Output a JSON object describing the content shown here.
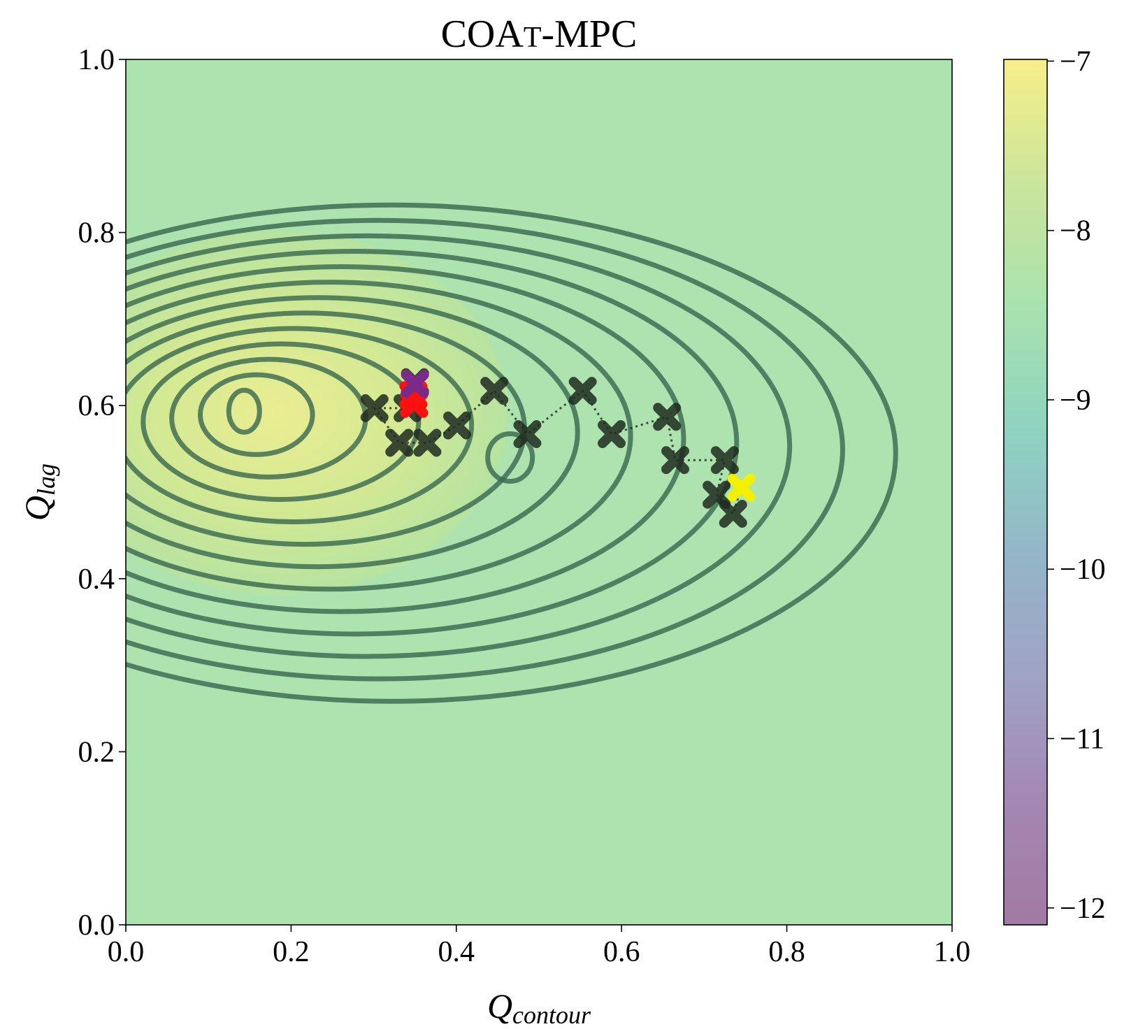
{
  "chart_data": {
    "type": "contour",
    "title": "COAT-MPC",
    "title_parts": {
      "prefix": "COA",
      "smallcaps": "T",
      "suffix": "-MPC"
    },
    "xlabel": {
      "main": "Q",
      "sub": "contour"
    },
    "ylabel": {
      "main": "Q",
      "sub": "lag"
    },
    "xlim": [
      0.0,
      1.0
    ],
    "ylim": [
      0.0,
      1.0
    ],
    "xticks": [
      "0.0",
      "0.2",
      "0.4",
      "0.6",
      "0.8",
      "1.0"
    ],
    "yticks": [
      "0.0",
      "0.2",
      "0.4",
      "0.6",
      "0.8",
      "1.0"
    ],
    "colorbar": {
      "range": [
        -12.1,
        -6.99
      ],
      "ticks": [
        "−7",
        "−8",
        "−9",
        "−10",
        "−11",
        "−12"
      ],
      "tick_values": [
        -7,
        -8,
        -9,
        -10,
        -11,
        -12
      ],
      "colors": [
        "#f7ef8a",
        "#cbe59b",
        "#a9e2af",
        "#8dd3c0",
        "#94b6c8",
        "#9fa3c4",
        "#a487b2",
        "#a27aa3"
      ]
    },
    "background_color": "#ade3af",
    "contour_color": "#3c6a51",
    "main_peak": {
      "x": 0.15,
      "y": 0.6
    },
    "secondary_peak": {
      "x": 0.46,
      "y": 0.54
    },
    "trajectory": [
      {
        "x": 0.745,
        "y": 0.505,
        "color": "#f3f000"
      },
      {
        "x": 0.735,
        "y": 0.475,
        "color": "#1e2a1e"
      },
      {
        "x": 0.715,
        "y": 0.497,
        "color": "#1e2a1e"
      },
      {
        "x": 0.725,
        "y": 0.537,
        "color": "#1e2a1e"
      },
      {
        "x": 0.665,
        "y": 0.537,
        "color": "#1e2a1e"
      },
      {
        "x": 0.655,
        "y": 0.587,
        "color": "#1e2a1e"
      },
      {
        "x": 0.588,
        "y": 0.567,
        "color": "#1e2a1e"
      },
      {
        "x": 0.553,
        "y": 0.617,
        "color": "#1e2a1e"
      },
      {
        "x": 0.486,
        "y": 0.567,
        "color": "#1e2a1e"
      },
      {
        "x": 0.446,
        "y": 0.617,
        "color": "#1e2a1e"
      },
      {
        "x": 0.401,
        "y": 0.577,
        "color": "#1e2a1e"
      },
      {
        "x": 0.365,
        "y": 0.557,
        "color": "#1e2a1e"
      },
      {
        "x": 0.331,
        "y": 0.557,
        "color": "#1e2a1e"
      },
      {
        "x": 0.301,
        "y": 0.597,
        "color": "#1e2a1e"
      },
      {
        "x": 0.341,
        "y": 0.597,
        "color": "#1e2a1e"
      },
      {
        "x": 0.35,
        "y": 0.627,
        "color": "#1e2a1e"
      },
      {
        "x": 0.348,
        "y": 0.612,
        "color": "#ff1010"
      },
      {
        "x": 0.349,
        "y": 0.602,
        "color": "#ff1010"
      },
      {
        "x": 0.35,
        "y": 0.625,
        "color": "#7b2a8a"
      }
    ],
    "legend": "none",
    "grid": false
  }
}
